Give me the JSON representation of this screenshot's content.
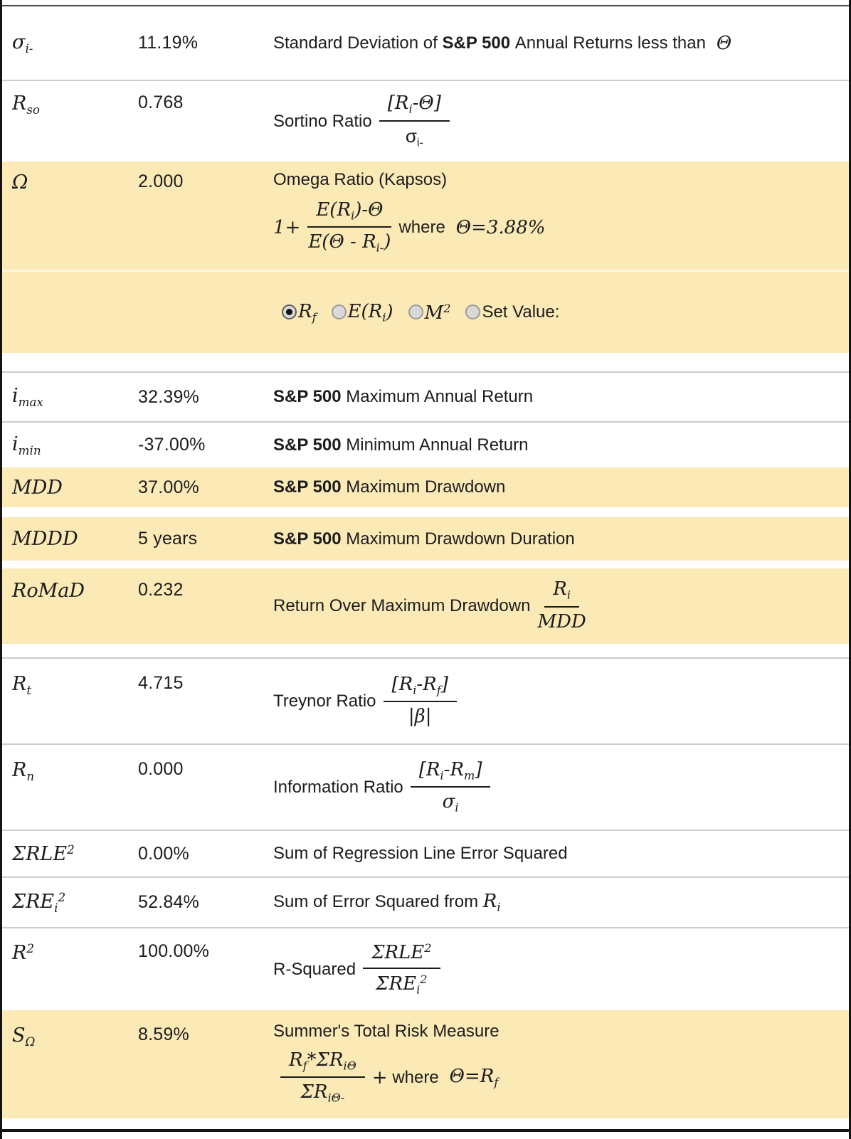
{
  "colors": {
    "highlight": "#FBEAB6",
    "frame_border": "#141414",
    "top_rule": "#4B4B4B",
    "row_separator": "#CCCCCC",
    "text": "#1C1C1E",
    "radio_fill": "#D9D9D9",
    "radio_dot": "#101010"
  },
  "rows": [
    {
      "id": "sigma-i-minus",
      "highlight": false,
      "symbol": [
        {
          "m": "σ",
          "sub": "i-"
        }
      ],
      "value": "11.19%",
      "desc_lines": [
        [
          {
            "t": "Standard Deviation of "
          },
          {
            "t": "S&P 500",
            "b": true
          },
          {
            "t": " Annual Returns less than "
          },
          {
            "m": " Θ"
          }
        ]
      ]
    },
    {
      "id": "sortino-ratio",
      "highlight": false,
      "symbol": [
        {
          "m": "R",
          "sub": "so"
        }
      ],
      "value": "0.768",
      "desc_lines": [
        [
          {
            "t": "Sortino Ratio"
          },
          {
            "frac": {
              "num": [
                {
                  "m": "[R",
                  "sub": "i"
                },
                {
                  "m": "-Θ]"
                }
              ],
              "den": [
                {
                  "u": "σ",
                  "sub": "i-"
                }
              ]
            }
          }
        ]
      ]
    },
    {
      "id": "omega-ratio",
      "highlight": true,
      "symbol": [
        {
          "m": "Ω"
        }
      ],
      "value": "2.000",
      "desc_lines": [
        [
          {
            "t": "Omega Ratio (Kapsos)"
          }
        ],
        [
          {
            "m": "1+"
          },
          {
            "frac": {
              "num": [
                {
                  "m": "E(R",
                  "sub": "i"
                },
                {
                  "m": ")-Θ"
                }
              ],
              "den": [
                {
                  "m": "E(Θ - R",
                  "sub": "i-"
                },
                {
                  "m": ")"
                }
              ]
            }
          },
          {
            "t": "where "
          },
          {
            "m": " Θ=3.88%"
          }
        ]
      ]
    },
    {
      "id": "omega-theta-options",
      "highlight": true,
      "symbol": [],
      "value": "",
      "desc_lines": [
        [
          {
            "radio": true,
            "checked": true,
            "rid": "rf",
            "label": [
              {
                "m": "R",
                "sub": "f"
              }
            ]
          },
          {
            "radio": true,
            "checked": false,
            "rid": "eri",
            "label": [
              {
                "m": "E(R",
                "sub": "i"
              },
              {
                "m": ")"
              }
            ]
          },
          {
            "radio": true,
            "checked": false,
            "rid": "m2",
            "label": [
              {
                "m": "M",
                "sup": "2"
              }
            ]
          },
          {
            "radio": true,
            "checked": false,
            "rid": "set-value",
            "label": [
              {
                "t": "Set Value:"
              }
            ]
          }
        ]
      ]
    },
    {
      "id": "i-max",
      "highlight": false,
      "symbol": [
        {
          "m": "i",
          "sub": "max"
        }
      ],
      "value": "32.39%",
      "desc_lines": [
        [
          {
            "t": "S&P 500",
            "b": true
          },
          {
            "t": " Maximum Annual Return"
          }
        ]
      ]
    },
    {
      "id": "i-min",
      "highlight": false,
      "symbol": [
        {
          "m": "i",
          "sub": "min"
        }
      ],
      "value": "-37.00%",
      "desc_lines": [
        [
          {
            "t": "S&P 500",
            "b": true
          },
          {
            "t": " Minimum Annual Return"
          }
        ]
      ]
    },
    {
      "id": "mdd",
      "highlight": true,
      "symbol": [
        {
          "m": "MDD"
        }
      ],
      "value": "37.00%",
      "desc_lines": [
        [
          {
            "t": "S&P 500",
            "b": true
          },
          {
            "t": " Maximum Drawdown"
          }
        ]
      ]
    },
    {
      "id": "mddd",
      "highlight": true,
      "symbol": [
        {
          "m": "MDDD"
        }
      ],
      "value": "5 years",
      "desc_lines": [
        [
          {
            "t": "S&P 500",
            "b": true
          },
          {
            "t": " Maximum Drawdown Duration"
          }
        ]
      ]
    },
    {
      "id": "romad",
      "highlight": true,
      "symbol": [
        {
          "m": "RoMaD"
        }
      ],
      "value": "0.232",
      "desc_lines": [
        [
          {
            "t": "Return Over Maximum Drawdown"
          },
          {
            "frac": {
              "num": [
                {
                  "m": "R",
                  "sub": "i"
                }
              ],
              "den": [
                {
                  "m": "MDD"
                }
              ]
            }
          }
        ]
      ]
    },
    {
      "id": "treynor-ratio",
      "highlight": false,
      "symbol": [
        {
          "m": "R",
          "sub": "t"
        }
      ],
      "value": "4.715",
      "desc_lines": [
        [
          {
            "t": "Treynor Ratio"
          },
          {
            "frac": {
              "num": [
                {
                  "m": "[R",
                  "sub": "i"
                },
                {
                  "m": "-R",
                  "sub": "f"
                },
                {
                  "m": "]"
                }
              ],
              "den": [
                {
                  "m": "|β|"
                }
              ]
            }
          }
        ]
      ]
    },
    {
      "id": "information-ratio",
      "highlight": false,
      "symbol": [
        {
          "m": "R",
          "sub": "n"
        }
      ],
      "value": "0.000",
      "desc_lines": [
        [
          {
            "t": "Information Ratio"
          },
          {
            "frac": {
              "num": [
                {
                  "m": "[R",
                  "sub": "i"
                },
                {
                  "m": "-R",
                  "sub": "m"
                },
                {
                  "m": "]"
                }
              ],
              "den": [
                {
                  "m": "σ",
                  "sub": "i"
                }
              ]
            }
          }
        ]
      ]
    },
    {
      "id": "sum-rle2",
      "highlight": false,
      "symbol": [
        {
          "m": "ΣRLE",
          "sup": "2"
        }
      ],
      "value": "0.00%",
      "desc_lines": [
        [
          {
            "t": "Sum of Regression Line Error Squared"
          }
        ]
      ]
    },
    {
      "id": "sum-re2",
      "highlight": false,
      "symbol": [
        {
          "m": "ΣRE",
          "sub": "i",
          "sup": "2"
        }
      ],
      "value": "52.84%",
      "desc_lines": [
        [
          {
            "t": "Sum of Error Squared from "
          },
          {
            "m": "R",
            "sub": "i"
          }
        ]
      ]
    },
    {
      "id": "r-squared",
      "highlight": false,
      "symbol": [
        {
          "m": "R",
          "sup": "2"
        }
      ],
      "value": "100.00%",
      "desc_lines": [
        [
          {
            "t": "R-Squared"
          },
          {
            "frac": {
              "num": [
                {
                  "m": "ΣRLE",
                  "sup": "2"
                }
              ],
              "den": [
                {
                  "m": "ΣRE",
                  "sub": "i",
                  "sup": "2"
                }
              ]
            }
          }
        ]
      ]
    },
    {
      "id": "summers-total-risk",
      "highlight": true,
      "symbol": [
        {
          "m": "S",
          "sub": "Ω"
        }
      ],
      "value": "8.59%",
      "desc_lines": [
        [
          {
            "t": "Summer's Total Risk Measure"
          }
        ],
        [
          {
            "frac": {
              "num": [
                {
                  "m": "R",
                  "sub": "f"
                },
                {
                  "m": "*ΣR",
                  "sub": "iΘ"
                }
              ],
              "den": [
                {
                  "m": "ΣR",
                  "sub": "iΘ-"
                }
              ]
            }
          },
          {
            "m": "+"
          },
          {
            "t": " where "
          },
          {
            "m": " Θ=R",
            "sub": "f"
          }
        ]
      ]
    }
  ]
}
